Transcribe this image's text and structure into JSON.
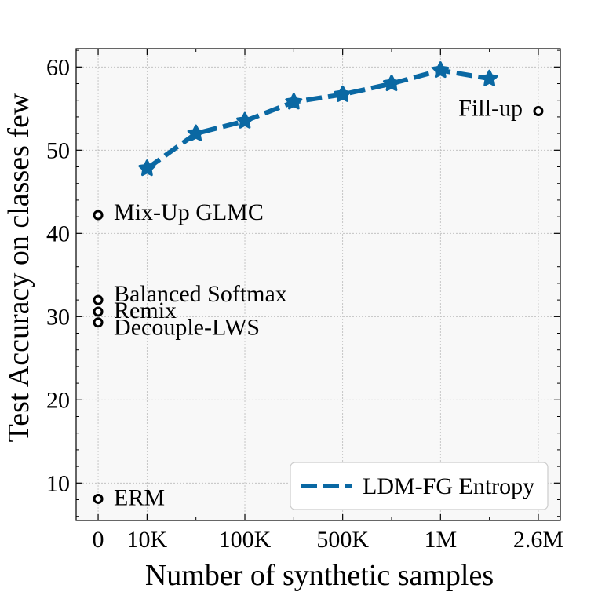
{
  "chart_data": {
    "type": "line",
    "title": "",
    "xlabel": "Number of synthetic samples",
    "ylabel": "Test Accuracy on classes few",
    "ylim": [
      5.5,
      62.2
    ],
    "xlim": [
      -0.45,
      9.45
    ],
    "grid": true,
    "x_tick_positions": [
      0,
      1,
      3,
      5,
      7,
      9
    ],
    "x_tick_labels": [
      "0",
      "10K",
      "100K",
      "500K",
      "1M",
      "2.6M"
    ],
    "y_ticks": [
      10,
      20,
      30,
      40,
      50,
      60
    ],
    "y_tick_labels": [
      "10",
      "20",
      "30",
      "40",
      "50",
      "60"
    ],
    "series": [
      {
        "name": "LDM-FG Entropy",
        "color": "#0a68a3",
        "marker": "star",
        "line": "dashed",
        "x": [
          1,
          2,
          3,
          4,
          5,
          6,
          7,
          8
        ],
        "values": [
          47.8,
          52.0,
          53.5,
          55.8,
          56.7,
          58.0,
          59.6,
          58.6
        ]
      }
    ],
    "baselines": [
      {
        "label": "Mix-Up GLMC",
        "x": 0,
        "value": 42.2
      },
      {
        "label": "Balanced Softmax",
        "x": 0,
        "value": 32.0
      },
      {
        "label": "Remix",
        "x": 0,
        "value": 30.6
      },
      {
        "label": "Decouple-LWS",
        "x": 0,
        "value": 29.3
      },
      {
        "label": "ERM",
        "x": 0,
        "value": 8.1
      },
      {
        "label": "Fill-up",
        "x": 9,
        "value": 54.7
      }
    ],
    "legend": {
      "position": "bottom-right",
      "entries": [
        "LDM-FG Entropy"
      ]
    }
  }
}
